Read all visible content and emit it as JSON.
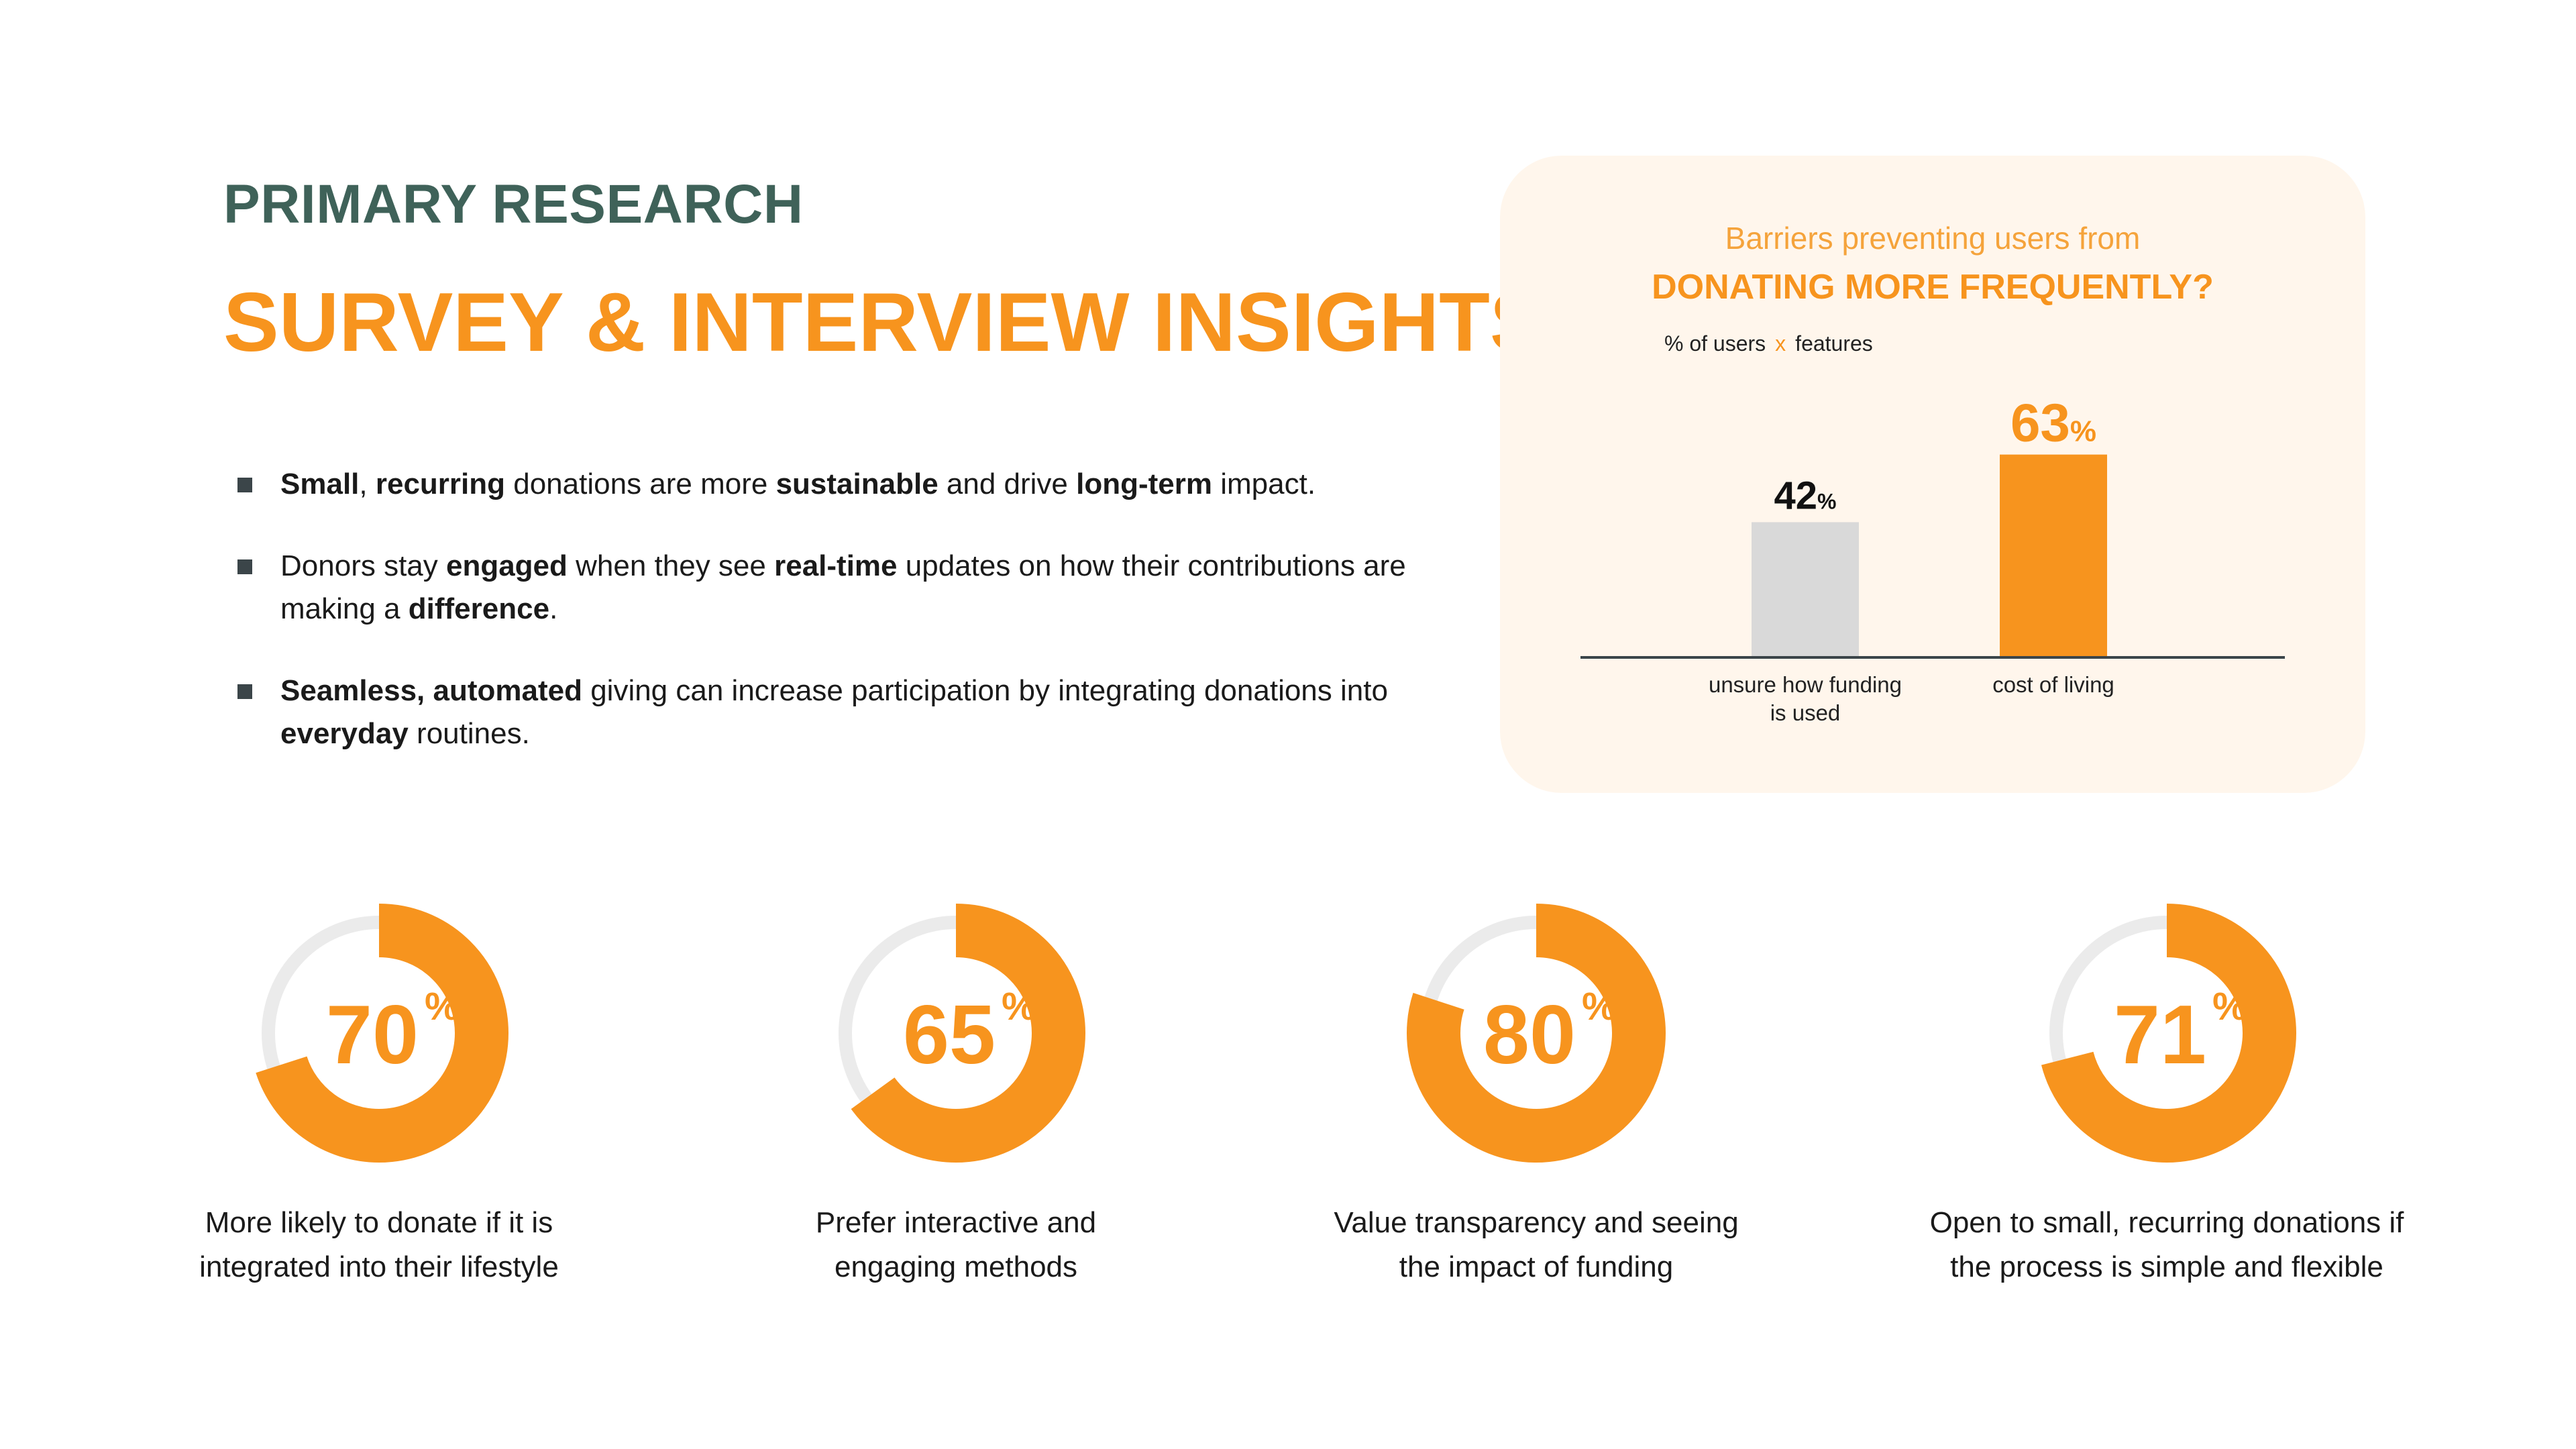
{
  "header": {
    "kicker": "PRIMARY RESEARCH",
    "headline": "SURVEY & INTERVIEW INSIGHTS"
  },
  "bullets": [
    [
      {
        "t": "Small",
        "b": true
      },
      {
        "t": ", ",
        "b": false
      },
      {
        "t": "recurring",
        "b": true
      },
      {
        "t": " donations are more ",
        "b": false
      },
      {
        "t": "sustainable",
        "b": true
      },
      {
        "t": " and drive ",
        "b": false
      },
      {
        "t": "long-term",
        "b": true
      },
      {
        "t": " impact.",
        "b": false
      }
    ],
    [
      {
        "t": "Donors stay ",
        "b": false
      },
      {
        "t": "engaged",
        "b": true
      },
      {
        "t": " when they see ",
        "b": false
      },
      {
        "t": "real-time",
        "b": true
      },
      {
        "t": " updates on how their contributions are making a ",
        "b": false
      },
      {
        "t": "difference",
        "b": true
      },
      {
        "t": ".",
        "b": false
      }
    ],
    [
      {
        "t": "Seamless, automated",
        "b": true
      },
      {
        "t": " giving can increase participation by integrating donations into ",
        "b": false
      },
      {
        "t": "everyday",
        "b": true
      },
      {
        "t": " routines.",
        "b": false
      }
    ]
  ],
  "colors": {
    "accent": "#f7941e",
    "heading_green": "#3f6259",
    "bar_neutral": "#d9d9d9",
    "track": "#ebebeb",
    "card_bg": "#fff6ec"
  },
  "chart_data": [
    {
      "type": "bar",
      "subtitle": "Barriers preventing users from",
      "title": "DONATING MORE FREQUENTLY?",
      "legend": [
        "% of users",
        "x",
        "features"
      ],
      "categories": [
        "unsure how funding is used",
        "cost of living"
      ],
      "category_lines": [
        [
          "unsure how funding",
          "is used"
        ],
        [
          "cost of living"
        ]
      ],
      "values": [
        42,
        63
      ],
      "value_labels": [
        "42",
        "63"
      ],
      "unit": "%",
      "bar_colors": [
        "#d9d9d9",
        "#f7941e"
      ],
      "value_label_colors": [
        "#111111",
        "#f7941e"
      ],
      "ylim": [
        0,
        100
      ],
      "grid": false
    },
    {
      "type": "pie",
      "items": [
        {
          "value": 70,
          "label": "70",
          "unit": "%",
          "caption": [
            "More likely to donate if it is",
            "integrated into their lifestyle"
          ]
        },
        {
          "value": 65,
          "label": "65",
          "unit": "%",
          "caption": [
            "Prefer interactive and",
            "engaging methods"
          ]
        },
        {
          "value": 80,
          "label": "80",
          "unit": "%",
          "caption": [
            "Value transparency and seeing",
            "the impact of funding"
          ]
        },
        {
          "value": 71,
          "label": "71",
          "unit": "%",
          "caption": [
            "Open to small, recurring donations if",
            "the process is simple and flexible"
          ]
        }
      ]
    }
  ]
}
